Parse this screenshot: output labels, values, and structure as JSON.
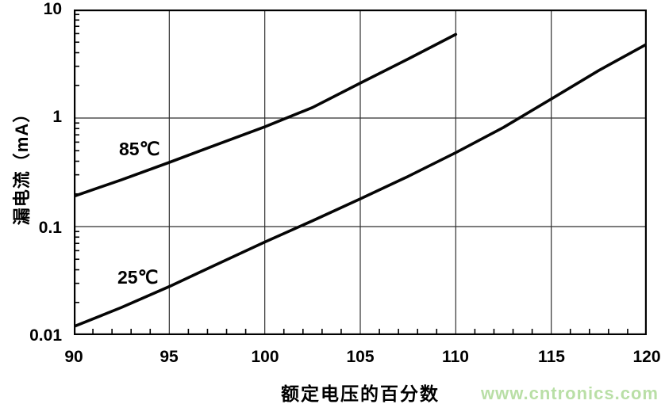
{
  "watermark": {
    "text": "www.cntronics.com",
    "color": "#b9dfa6"
  },
  "chart_data": {
    "type": "line",
    "title": "",
    "xlabel": "额定电压的百分数",
    "ylabel": "漏电流（mA）",
    "xlim": [
      90,
      120
    ],
    "ylim": [
      0.01,
      10
    ],
    "yscale": "log",
    "grid": "major",
    "grid_color": "#2f2f2f",
    "line_color": "#050505",
    "xticks": [
      90,
      95,
      100,
      105,
      110,
      115,
      120
    ],
    "xtick_labels": [
      "90",
      "95",
      "100",
      "105",
      "110",
      "115",
      "120"
    ],
    "ytick_labels": [
      "10",
      "1",
      "0.1",
      "0.01"
    ],
    "ygrid": [
      1,
      0.1
    ],
    "x_minor_step": 1,
    "series": [
      {
        "name": "85℃",
        "points": [
          [
            90,
            0.19
          ],
          [
            92.5,
            0.27
          ],
          [
            95,
            0.39
          ],
          [
            97.5,
            0.57
          ],
          [
            100,
            0.83
          ],
          [
            102.5,
            1.25
          ],
          [
            105,
            2.1
          ],
          [
            107.5,
            3.5
          ],
          [
            110,
            5.9
          ]
        ]
      },
      {
        "name": "25℃",
        "points": [
          [
            90,
            0.012
          ],
          [
            92.5,
            0.018
          ],
          [
            95,
            0.028
          ],
          [
            97.5,
            0.045
          ],
          [
            100,
            0.072
          ],
          [
            102.5,
            0.113
          ],
          [
            105,
            0.18
          ],
          [
            107.5,
            0.29
          ],
          [
            110,
            0.48
          ],
          [
            112.5,
            0.82
          ],
          [
            115,
            1.5
          ],
          [
            117.5,
            2.75
          ],
          [
            120,
            4.8
          ]
        ]
      }
    ]
  }
}
